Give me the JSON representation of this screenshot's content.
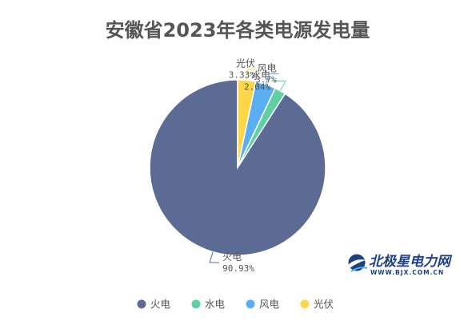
{
  "chart_data": {
    "type": "pie",
    "title": "安徽省2023年各类电源发电量",
    "slices": [
      {
        "name": "火电",
        "value": 90.93,
        "label": "90.93%",
        "color": "#5b6b94"
      },
      {
        "name": "水电",
        "value": 2.04,
        "label": "2.04%",
        "color": "#5fd0a4"
      },
      {
        "name": "风电",
        "value": 3.7,
        "label": "3.7%",
        "color": "#5aaef2"
      },
      {
        "name": "光伏",
        "value": 3.33,
        "label": "3.33%",
        "color": "#fdd64a"
      }
    ],
    "legend": {
      "position": "bottom",
      "items": [
        "火电",
        "水电",
        "风电",
        "光伏"
      ]
    }
  },
  "watermark": {
    "name": "北极星电力网",
    "url": "WWW.BJX.COM.CN"
  }
}
